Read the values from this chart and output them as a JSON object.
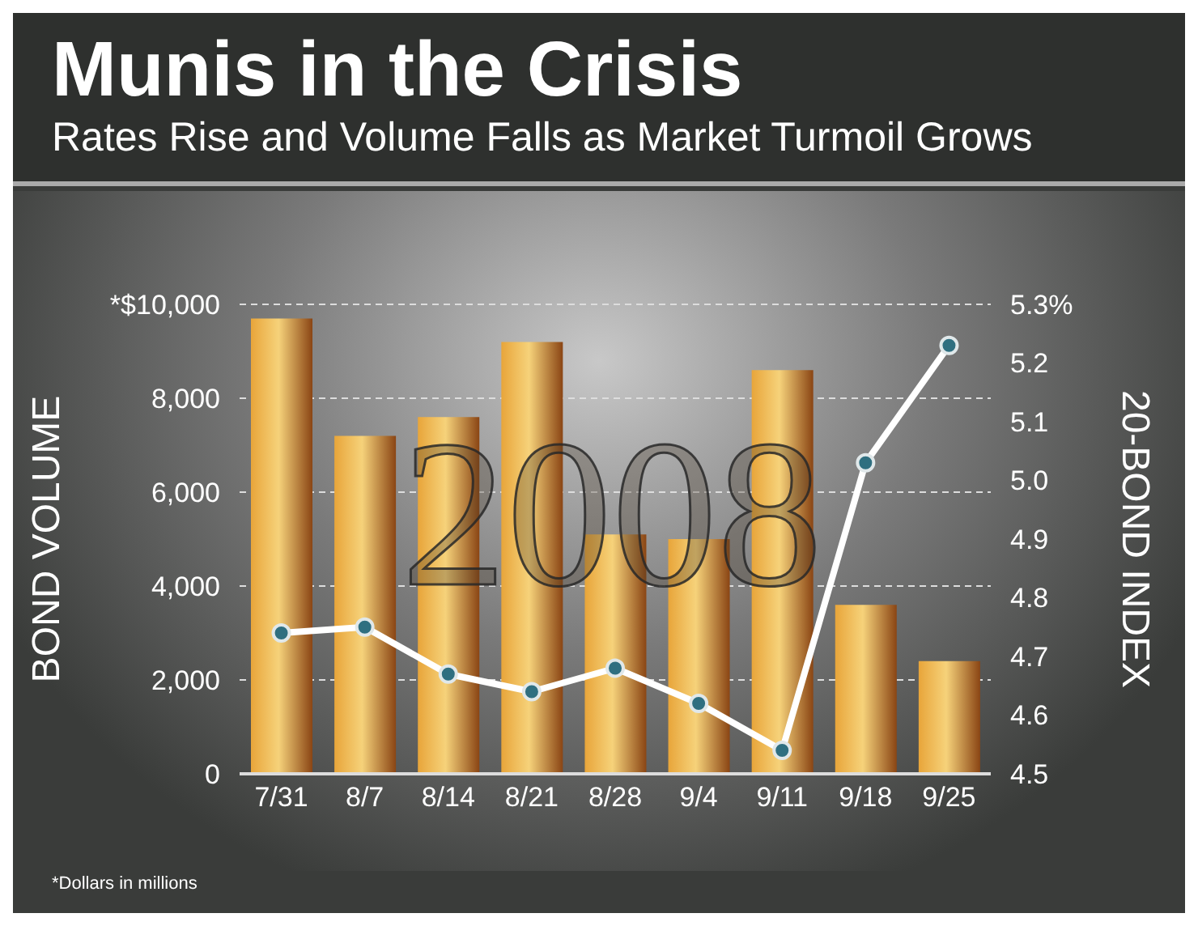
{
  "chart_data": {
    "type": "bar",
    "title": "Munis in the Crisis",
    "subtitle": "Rates Rise and Volume Falls as Market Turmoil Grows",
    "ylabel": "BOND VOLUME",
    "y2label": "20-BOND INDEX",
    "categories": [
      "7/31",
      "8/7",
      "8/14",
      "8/21",
      "8/28",
      "9/4",
      "9/11",
      "9/18",
      "9/25"
    ],
    "series": [
      {
        "color": "#e8a53a",
        "values": [
          9700,
          7200,
          7600,
          9200,
          5100,
          5000,
          8600,
          3600,
          2400
        ]
      },
      {
        "type": "line",
        "axis": "y2",
        "color": "#ffffff",
        "values": [
          4.74,
          4.75,
          4.67,
          4.64,
          4.68,
          4.62,
          4.54,
          5.03,
          5.23
        ]
      }
    ],
    "ylim": [
      0,
      10000
    ],
    "yticks": [
      0,
      {
        "value": 2000,
        "label": "2,000"
      },
      {
        "value": 4000,
        "label": "4,000"
      },
      {
        "value": 6000,
        "label": "6,000"
      },
      {
        "value": 8000,
        "label": "8,000"
      },
      {
        "value": 10000,
        "label": "*$10,000"
      }
    ],
    "y2lim": [
      4.5,
      5.3
    ],
    "y2ticks": [
      {
        "value": 4.5,
        "label": "4.5"
      },
      {
        "value": 4.6,
        "label": "4.6"
      },
      {
        "value": 4.7,
        "label": "4.7"
      },
      {
        "value": 4.8,
        "label": "4.8"
      },
      {
        "value": 4.9,
        "label": "4.9"
      },
      {
        "value": 5.0,
        "label": "5.0"
      },
      {
        "value": 5.1,
        "label": "5.1"
      },
      {
        "value": 5.2,
        "label": "5.2"
      },
      {
        "value": 5.3,
        "label": "5.3%"
      }
    ],
    "grid": "y",
    "marker": "circle",
    "line_style": "solid",
    "legend": false,
    "annotations": [
      "2008",
      "*Dollars in millions"
    ]
  }
}
